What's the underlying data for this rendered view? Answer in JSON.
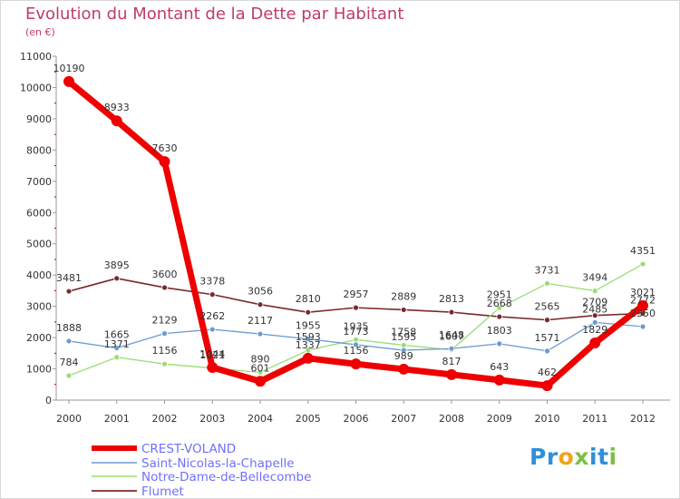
{
  "chart_data": {
    "type": "line",
    "title": "Evolution du Montant de la Dette par Habitant",
    "subtitle": "(en €)",
    "x": [
      "2000",
      "2001",
      "2002",
      "2003",
      "2004",
      "2005",
      "2006",
      "2007",
      "2008",
      "2009",
      "2010",
      "2011",
      "2012"
    ],
    "yticks": [
      "0",
      "1000",
      "2000",
      "3000",
      "4000",
      "5000",
      "6000",
      "7000",
      "8000",
      "9000",
      "10000",
      "11000"
    ],
    "ylim": [
      0,
      11000
    ],
    "grid": false,
    "legend": "bottom-left",
    "series": [
      {
        "name": "CREST-VOLAND",
        "color": "#ee0000",
        "values": [
          10190,
          8933,
          7630,
          1044,
          601,
          1337,
          1156,
          989,
          817,
          643,
          462,
          1829,
          3021
        ]
      },
      {
        "name": "Saint-Nicolas-la-Chapelle",
        "color": "#6b9bd1",
        "values": [
          1888,
          1665,
          2129,
          2262,
          2117,
          1955,
          1773,
          1595,
          1648,
          1803,
          1571,
          2485,
          2350
        ]
      },
      {
        "name": "Notre-Dame-de-Bellecombe",
        "color": "#99dd77",
        "values": [
          784,
          1371,
          1156,
          1021,
          890,
          1593,
          1935,
          1758,
          1607,
          2951,
          3731,
          3494,
          4351
        ]
      },
      {
        "name": "Flumet",
        "color": "#7a2a2a",
        "values": [
          3481,
          3895,
          3600,
          3378,
          3056,
          2810,
          2957,
          2889,
          2813,
          2668,
          2565,
          2709,
          2772
        ]
      }
    ]
  },
  "brand": {
    "letters": [
      {
        "ch": "P",
        "color": "#2e8fd8"
      },
      {
        "ch": "r",
        "color": "#2e8fd8"
      },
      {
        "ch": "o",
        "color": "#f3a21b"
      },
      {
        "ch": "x",
        "color": "#7cc242"
      },
      {
        "ch": "i",
        "color": "#2e8fd8"
      },
      {
        "ch": "t",
        "color": "#2e8fd8"
      },
      {
        "ch": "i",
        "color": "#7cc242"
      }
    ]
  }
}
